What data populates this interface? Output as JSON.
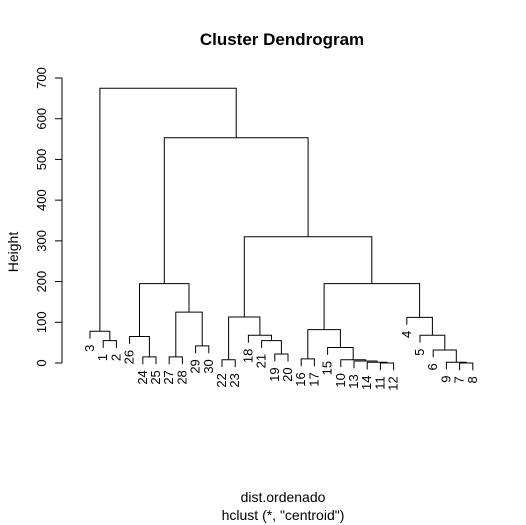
{
  "chart_data": {
    "type": "dendrogram",
    "title": "Cluster Dendrogram",
    "ylabel": "Height",
    "xlabel": "dist.ordenado",
    "sublabel": "hclust (*, \"centroid\")",
    "ylim": [
      0,
      700
    ],
    "yticks": [
      0,
      100,
      200,
      300,
      400,
      500,
      600,
      700
    ],
    "leaves": [
      "3",
      "1",
      "2",
      "26",
      "24",
      "25",
      "27",
      "28",
      "29",
      "30",
      "22",
      "23",
      "18",
      "21",
      "19",
      "20",
      "16",
      "17",
      "15",
      "10",
      "13",
      "14",
      "11",
      "12",
      "4",
      "5",
      "6",
      "9",
      "7",
      "8"
    ],
    "merges": [
      {
        "id": "A",
        "children": [
          "1",
          "2"
        ],
        "height": 55
      },
      {
        "id": "B",
        "children": [
          "3",
          "A"
        ],
        "height": 78
      },
      {
        "id": "C",
        "children": [
          "24",
          "25"
        ],
        "height": 15
      },
      {
        "id": "D",
        "children": [
          "26",
          "C"
        ],
        "height": 65
      },
      {
        "id": "E",
        "children": [
          "27",
          "28"
        ],
        "height": 15
      },
      {
        "id": "F",
        "children": [
          "29",
          "30"
        ],
        "height": 42
      },
      {
        "id": "G",
        "children": [
          "E",
          "F"
        ],
        "height": 125
      },
      {
        "id": "H",
        "children": [
          "D",
          "G"
        ],
        "height": 195
      },
      {
        "id": "I",
        "children": [
          "22",
          "23"
        ],
        "height": 8
      },
      {
        "id": "J",
        "children": [
          "19",
          "20"
        ],
        "height": 22
      },
      {
        "id": "K",
        "children": [
          "21",
          "J"
        ],
        "height": 55
      },
      {
        "id": "L",
        "children": [
          "18",
          "K"
        ],
        "height": 68
      },
      {
        "id": "M",
        "children": [
          "I",
          "L"
        ],
        "height": 113
      },
      {
        "id": "N",
        "children": [
          "16",
          "17"
        ],
        "height": 10
      },
      {
        "id": "O",
        "children": [
          "11",
          "12"
        ],
        "height": 0
      },
      {
        "id": "P",
        "children": [
          "14",
          "O"
        ],
        "height": 2
      },
      {
        "id": "Q",
        "children": [
          "13",
          "P"
        ],
        "height": 5
      },
      {
        "id": "R",
        "children": [
          "10",
          "Q"
        ],
        "height": 8
      },
      {
        "id": "S",
        "children": [
          "15",
          "R"
        ],
        "height": 38
      },
      {
        "id": "T",
        "children": [
          "N",
          "S"
        ],
        "height": 82
      },
      {
        "id": "U",
        "children": [
          "7",
          "8"
        ],
        "height": 0
      },
      {
        "id": "V",
        "children": [
          "9",
          "U"
        ],
        "height": 2
      },
      {
        "id": "W",
        "children": [
          "6",
          "V"
        ],
        "height": 32
      },
      {
        "id": "X",
        "children": [
          "5",
          "W"
        ],
        "height": 68
      },
      {
        "id": "Y",
        "children": [
          "4",
          "X"
        ],
        "height": 112
      },
      {
        "id": "Z",
        "children": [
          "T",
          "Y"
        ],
        "height": 195
      },
      {
        "id": "AA",
        "children": [
          "M",
          "Z"
        ],
        "height": 310
      },
      {
        "id": "AB",
        "children": [
          "H",
          "AA"
        ],
        "height": 553
      },
      {
        "id": "AC",
        "children": [
          "B",
          "AB"
        ],
        "height": 675
      }
    ]
  }
}
